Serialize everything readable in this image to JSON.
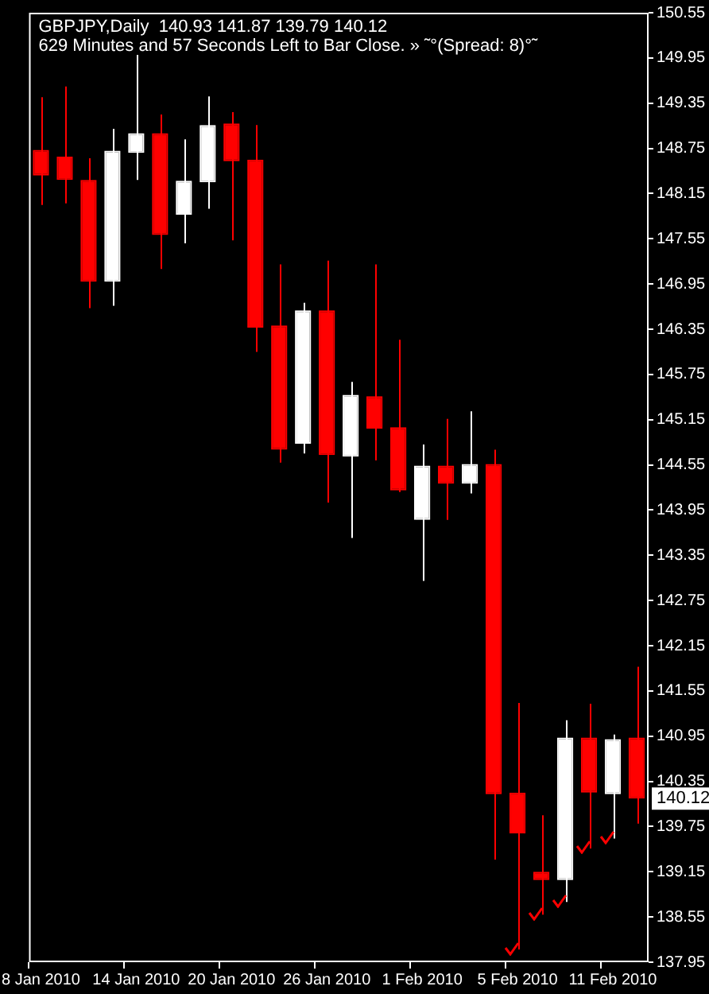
{
  "chart_data": {
    "type": "candlestick",
    "title": "GBPJPY,Daily  140.93 141.87 139.79 140.12",
    "subtitle": "629 Minutes and 57 Seconds Left to Bar Close. » ˜°(Spread: 8)°˜",
    "categories": [
      "8 Jan 2010",
      null,
      null,
      null,
      "14 Jan 2010",
      null,
      null,
      null,
      "20 Jan 2010",
      null,
      null,
      null,
      "26 Jan 2010",
      null,
      null,
      null,
      "1 Feb 2010",
      null,
      null,
      null,
      "5 Feb 2010",
      null,
      null,
      null,
      "11 Feb 2010",
      null
    ],
    "ohlc": [
      [
        148.73,
        149.43,
        148.0,
        148.39
      ],
      [
        148.64,
        149.57,
        148.02,
        148.33
      ],
      [
        148.33,
        148.62,
        146.63,
        146.98
      ],
      [
        146.98,
        149.01,
        146.66,
        148.72
      ],
      [
        148.69,
        149.99,
        148.33,
        148.95
      ],
      [
        148.95,
        149.2,
        147.15,
        147.6
      ],
      [
        147.87,
        148.87,
        147.49,
        148.32
      ],
      [
        148.3,
        149.44,
        147.95,
        149.06
      ],
      [
        149.08,
        149.23,
        147.53,
        148.58
      ],
      [
        148.6,
        149.06,
        146.05,
        146.37
      ],
      [
        146.4,
        147.21,
        144.58,
        144.75
      ],
      [
        144.83,
        146.7,
        144.7,
        146.6
      ],
      [
        146.6,
        147.26,
        144.05,
        144.68
      ],
      [
        144.66,
        145.65,
        143.58,
        145.48
      ],
      [
        145.46,
        147.21,
        144.61,
        145.03
      ],
      [
        145.05,
        146.21,
        144.19,
        144.21
      ],
      [
        143.82,
        144.82,
        143.01,
        144.54
      ],
      [
        144.54,
        145.16,
        143.82,
        144.3
      ],
      [
        144.3,
        145.26,
        144.17,
        144.56
      ],
      [
        144.56,
        144.75,
        139.31,
        140.18
      ],
      [
        140.2,
        141.39,
        138.12,
        139.66
      ],
      [
        139.15,
        139.9,
        138.58,
        139.04
      ],
      [
        139.04,
        141.16,
        138.75,
        140.93
      ],
      [
        140.93,
        141.38,
        139.46,
        140.2
      ],
      [
        140.18,
        140.97,
        139.59,
        140.91
      ],
      [
        140.93,
        141.87,
        139.79,
        140.12
      ]
    ],
    "colors": [
      "#ff0000",
      "#ff0000",
      "#ff0000",
      "#ffffff",
      "#ffffff",
      "#ff0000",
      "#ffffff",
      "#ffffff",
      "#ff0000",
      "#ff0000",
      "#ff0000",
      "#ffffff",
      "#ff0000",
      "#ffffff",
      "#ff0000",
      "#ff0000",
      "#ffffff",
      "#ff0000",
      "#ffffff",
      "#ff0000",
      "#ff0000",
      "#ff0000",
      "#ffffff",
      "#ff0000",
      "#ffffff",
      "#ff0000"
    ],
    "ylim": [
      137.95,
      150.55
    ],
    "yticks": [
      137.95,
      138.55,
      139.15,
      139.75,
      140.35,
      140.95,
      141.55,
      142.15,
      142.75,
      143.35,
      143.95,
      144.55,
      145.15,
      145.75,
      146.35,
      146.95,
      147.55,
      148.15,
      148.75,
      149.35,
      149.95,
      150.55
    ],
    "annotations": [
      {
        "text": "140.12",
        "y": 140.12
      }
    ],
    "grid": false,
    "legend": false
  }
}
